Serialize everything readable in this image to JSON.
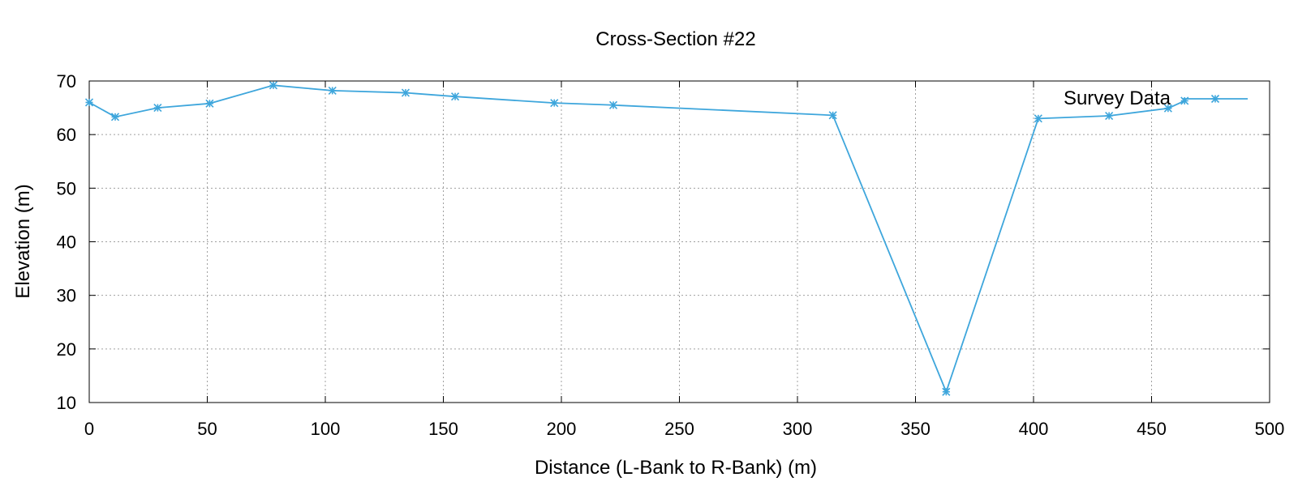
{
  "chart_data": {
    "type": "line",
    "title": "Cross-Section #22",
    "xlabel": "Distance (L-Bank to R-Bank) (m)",
    "ylabel": "Elevation (m)",
    "xlim": [
      0,
      500
    ],
    "ylim": [
      10,
      70
    ],
    "x_ticks": [
      0,
      50,
      100,
      150,
      200,
      250,
      300,
      350,
      400,
      450,
      500
    ],
    "y_ticks": [
      10,
      20,
      30,
      40,
      50,
      60,
      70
    ],
    "grid": true,
    "legend_position": "top-right",
    "series": [
      {
        "name": "Survey Data",
        "color": "#3ea6dc",
        "marker": "asterisk",
        "x": [
          0,
          11,
          29,
          51,
          78,
          103,
          134,
          155,
          197,
          222,
          315,
          363,
          402,
          432,
          457,
          464
        ],
        "y": [
          66,
          63.3,
          65,
          65.8,
          69.2,
          68.2,
          67.8,
          67.1,
          65.9,
          65.5,
          63.6,
          12,
          63,
          63.5,
          64.9,
          66.3
        ]
      }
    ]
  }
}
